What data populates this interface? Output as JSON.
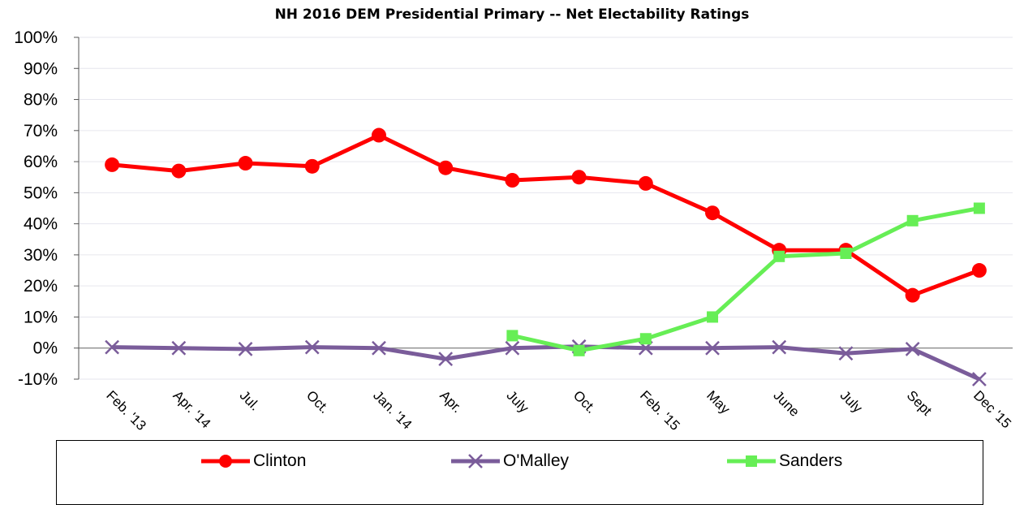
{
  "chart_data": {
    "type": "line",
    "title": "NH 2016 DEM Presidential Primary -- Net Electability Ratings",
    "xlabel": "",
    "ylabel": "",
    "categories": [
      "Feb. '13",
      "Apr. '14",
      "Jul.",
      "Oct.",
      "Jan. '14",
      "Apr.",
      "July",
      "Oct.",
      "Feb. '15",
      "May",
      "June",
      "July",
      "Sept",
      "Dec '15"
    ],
    "yticks": [
      "100%",
      "90%",
      "80%",
      "70%",
      "60%",
      "50%",
      "40%",
      "30%",
      "20%",
      "10%",
      "0%",
      "-10%"
    ],
    "ylim": [
      -10,
      100
    ],
    "grid": true,
    "legend_position": "bottom",
    "series": [
      {
        "name": "Clinton",
        "color": "#ff0000",
        "marker": "circle",
        "values": [
          59,
          57,
          59.5,
          58.5,
          68.5,
          58,
          54,
          55,
          53,
          43.5,
          31.5,
          31.5,
          17,
          25
        ]
      },
      {
        "name": "O'Malley",
        "color": "#7a5c9a",
        "marker": "x",
        "values": [
          0.3,
          0,
          -0.3,
          0.3,
          0,
          -3.5,
          0,
          0.5,
          0,
          0,
          0.3,
          -1.7,
          -0.3,
          -10
        ]
      },
      {
        "name": "Sanders",
        "color": "#66ee55",
        "marker": "square",
        "values": [
          null,
          null,
          null,
          null,
          null,
          null,
          4,
          -0.8,
          3,
          10,
          29.5,
          30.5,
          41,
          45
        ]
      }
    ]
  }
}
